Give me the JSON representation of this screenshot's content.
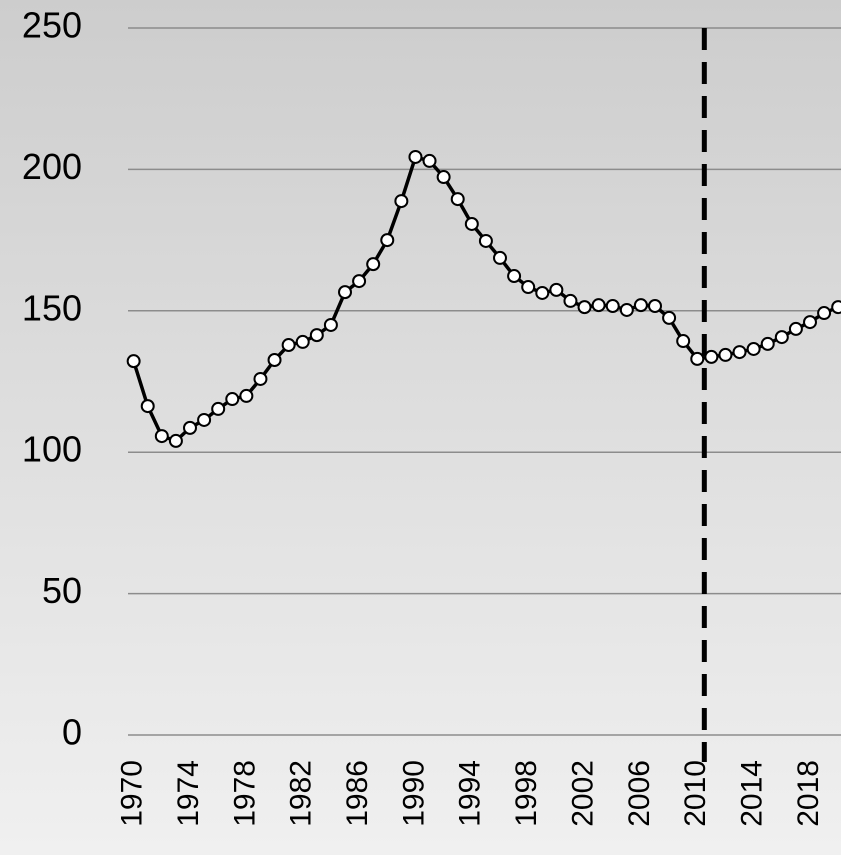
{
  "chart_data": {
    "type": "line",
    "x": [
      1970,
      1971,
      1972,
      1973,
      1974,
      1975,
      1976,
      1977,
      1978,
      1979,
      1980,
      1981,
      1982,
      1983,
      1984,
      1985,
      1986,
      1987,
      1988,
      1989,
      1990,
      1991,
      1992,
      1993,
      1994,
      1995,
      1996,
      1997,
      1998,
      1999,
      2000,
      2001,
      2002,
      2003,
      2004,
      2005,
      2006,
      2007,
      2008,
      2009,
      2010,
      2011,
      2012,
      2013,
      2014,
      2015,
      2016,
      2017,
      2018,
      2019,
      2020
    ],
    "values": [
      132.2,
      116.3,
      105.7,
      104,
      108.6,
      111.4,
      115.3,
      118.8,
      119.9,
      125.9,
      132.6,
      137.9,
      139,
      141.4,
      145,
      156.6,
      160.5,
      166.5,
      175,
      188.8,
      204.4,
      203,
      197.3,
      189.5,
      180.7,
      174.7,
      168.7,
      162.3,
      158.4,
      156.3,
      157.4,
      153.5,
      151.3,
      152,
      151.7,
      150.3,
      152,
      151.7,
      147.5,
      139.3,
      133,
      133.7,
      134.4,
      135.4,
      136.5,
      138.3,
      140.7,
      143.6,
      146,
      149.2,
      151.3
    ],
    "color": "#000000",
    "xlim": [
      1969.6,
      2020.2
    ],
    "xticks": [
      1970,
      1974,
      1978,
      1982,
      1986,
      1990,
      1994,
      1998,
      2002,
      2006,
      2010,
      2014,
      2018
    ],
    "ylim": [
      0,
      250
    ],
    "yticks": [
      0,
      50,
      100,
      150,
      200,
      250
    ],
    "grid": true,
    "vline": 2010.5
  }
}
